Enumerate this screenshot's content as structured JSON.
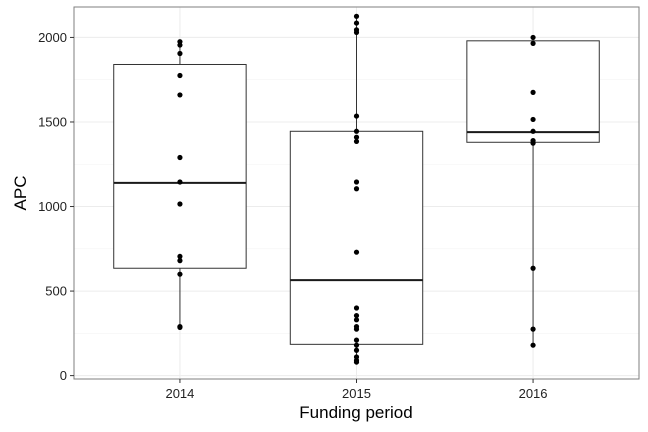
{
  "chart_data": {
    "type": "boxplot",
    "title": "",
    "xlabel": "Funding period",
    "ylabel": "APC",
    "ylim": [
      -20,
      2180
    ],
    "yticks": [
      0,
      500,
      1000,
      1500,
      2000
    ],
    "grid": true,
    "categories": [
      "2014",
      "2015",
      "2016"
    ],
    "boxes": [
      {
        "category": "2014",
        "whisker_low": 285,
        "q1": 635,
        "median": 1140,
        "q3": 1840,
        "whisker_high": 1975
      },
      {
        "category": "2015",
        "whisker_low": 80,
        "q1": 185,
        "median": 565,
        "q3": 1445,
        "whisker_high": 2125
      },
      {
        "category": "2016",
        "whisker_low": 180,
        "q1": 1380,
        "median": 1440,
        "q3": 1980,
        "whisker_high": 2000
      }
    ],
    "points": [
      {
        "category": "2014",
        "values": [
          1975,
          1955,
          1905,
          1775,
          1660,
          1290,
          1145,
          1015,
          705,
          680,
          600,
          290,
          285
        ]
      },
      {
        "category": "2015",
        "values": [
          2125,
          2085,
          2045,
          2030,
          1535,
          1445,
          1410,
          1385,
          1145,
          1105,
          730,
          400,
          355,
          330,
          290,
          275,
          210,
          180,
          150,
          110,
          90,
          80
        ]
      },
      {
        "category": "2016",
        "values": [
          2000,
          1965,
          1675,
          1515,
          1445,
          1390,
          1375,
          635,
          275,
          180
        ]
      }
    ],
    "colors": {
      "box_stroke": "#333333",
      "median": "#1a1a1a",
      "point": "#000000",
      "grid": "#ececec",
      "panel_border": "#7f7f7f"
    }
  }
}
